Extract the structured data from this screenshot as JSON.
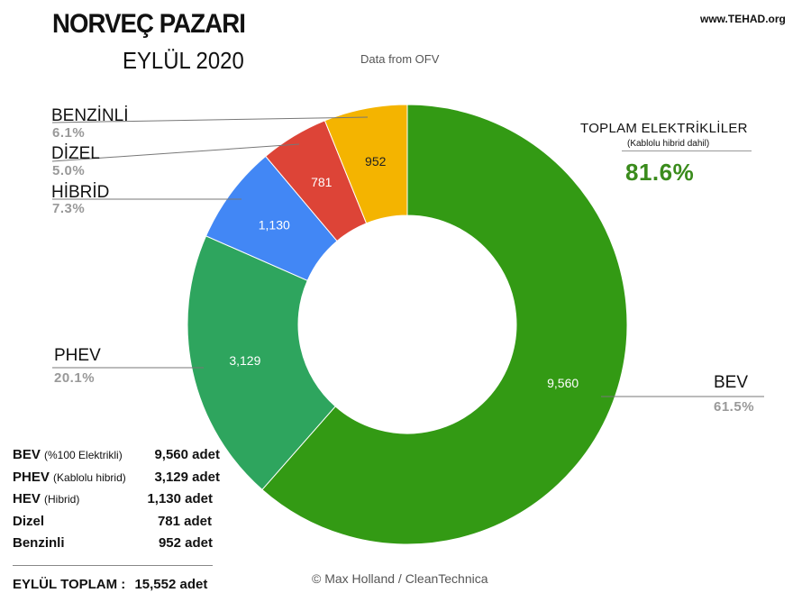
{
  "header": {
    "title": "NORVEÇ PAZARI",
    "subtitle": "EYLÜL 2020",
    "source": "Data from OFV",
    "site": "www.TEHAD.org"
  },
  "colors": {
    "bev": "#339a14",
    "phev": "#2ea55e",
    "hibrid": "#4287f5",
    "dizel": "#dd4437",
    "benzinli": "#f4b400",
    "pct_text": "#999999",
    "total_green": "#3a8b1c"
  },
  "chart_data": {
    "type": "pie",
    "donut": true,
    "title": "NORVEÇ PAZARI",
    "subtitle": "EYLÜL 2020",
    "slices": [
      {
        "key": "bev",
        "label": "BEV",
        "value": 9560,
        "value_label": "9,560",
        "percent_label": "61.5%"
      },
      {
        "key": "phev",
        "label": "PHEV",
        "value": 3129,
        "value_label": "3,129",
        "percent_label": "20.1%"
      },
      {
        "key": "hibrid",
        "label": "HİBRİD",
        "value": 1130,
        "value_label": "1,130",
        "percent_label": "7.3%"
      },
      {
        "key": "dizel",
        "label": "DİZEL",
        "value": 781,
        "value_label": "781",
        "percent_label": "5.0%"
      },
      {
        "key": "benzinli",
        "label": "BENZİNLİ",
        "value": 952,
        "value_label": "952",
        "percent_label": "6.1%"
      }
    ]
  },
  "electric_total": {
    "title": "TOPLAM ELEKTRİKLİLER",
    "note": "(Kablolu hibrid dahil)",
    "value": "81.6%"
  },
  "legend": {
    "rows": [
      {
        "name": "BEV",
        "detail": "(%100 Elektrikli)",
        "value": "9,560 adet"
      },
      {
        "name": "PHEV",
        "detail": "(Kablolu hibrid)",
        "value": "3,129 adet"
      },
      {
        "name": "HEV",
        "detail": "(Hibrid)",
        "value": "1,130 adet"
      },
      {
        "name": "Dizel",
        "detail": "",
        "value": "781 adet"
      },
      {
        "name": "Benzinli",
        "detail": "",
        "value": "952 adet"
      }
    ],
    "total_label": "EYLÜL TOPLAM :",
    "total_value": "15,552 adet"
  },
  "footer": {
    "copyright": "© Max Holland / CleanTechnica"
  }
}
